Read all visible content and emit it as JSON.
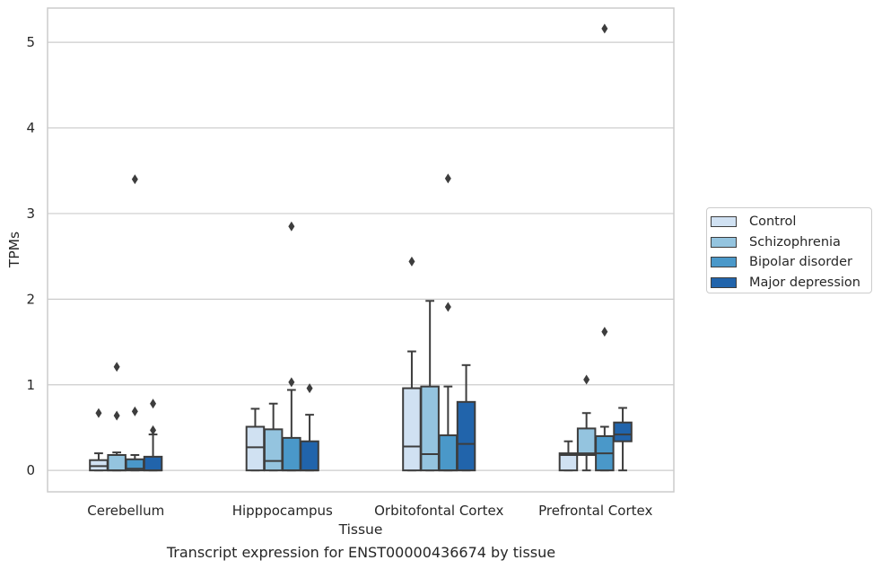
{
  "caption": "Transcript expression for ENST00000436674 by tissue",
  "chart_data": {
    "type": "box",
    "xlabel": "Tissue",
    "ylabel": "TPMs",
    "ylim": [
      -0.25,
      5.4
    ],
    "yticks": [
      0,
      1,
      2,
      3,
      4,
      5
    ],
    "grid": true,
    "legend_position": "right",
    "categories": [
      "Cerebellum",
      "Hipppocampus",
      "Orbitofontal Cortex",
      "Prefrontal Cortex"
    ],
    "series": [
      {
        "name": "Control",
        "color": "#d0e1f2",
        "boxes": [
          {
            "whislo": 0.0,
            "q1": 0.0,
            "med": 0.05,
            "q3": 0.12,
            "whishi": 0.2,
            "fliers": [
              0.67
            ]
          },
          {
            "whislo": 0.0,
            "q1": 0.0,
            "med": 0.27,
            "q3": 0.51,
            "whishi": 0.72,
            "fliers": []
          },
          {
            "whislo": 0.0,
            "q1": 0.0,
            "med": 0.28,
            "q3": 0.96,
            "whishi": 1.39,
            "fliers": [
              2.44
            ]
          },
          {
            "whislo": 0.0,
            "q1": 0.0,
            "med": 0.18,
            "q3": 0.2,
            "whishi": 0.34,
            "fliers": []
          }
        ]
      },
      {
        "name": "Schizophrenia",
        "color": "#94c4df",
        "boxes": [
          {
            "whislo": 0.0,
            "q1": 0.0,
            "med": 0.0,
            "q3": 0.18,
            "whishi": 0.21,
            "fliers": [
              0.64,
              1.21
            ]
          },
          {
            "whislo": 0.0,
            "q1": 0.0,
            "med": 0.11,
            "q3": 0.48,
            "whishi": 0.78,
            "fliers": []
          },
          {
            "whislo": 0.0,
            "q1": 0.0,
            "med": 0.19,
            "q3": 0.98,
            "whishi": 1.98,
            "fliers": []
          },
          {
            "whislo": 0.0,
            "q1": 0.18,
            "med": 0.2,
            "q3": 0.49,
            "whishi": 0.67,
            "fliers": [
              1.06
            ]
          }
        ]
      },
      {
        "name": "Bipolar disorder",
        "color": "#4a98c9",
        "boxes": [
          {
            "whislo": 0.0,
            "q1": 0.0,
            "med": 0.02,
            "q3": 0.13,
            "whishi": 0.18,
            "fliers": [
              0.69,
              3.4
            ]
          },
          {
            "whislo": 0.0,
            "q1": 0.0,
            "med": 0.0,
            "q3": 0.38,
            "whishi": 0.94,
            "fliers": [
              1.03,
              2.85
            ]
          },
          {
            "whislo": 0.0,
            "q1": 0.0,
            "med": 0.0,
            "q3": 0.41,
            "whishi": 0.98,
            "fliers": [
              1.91,
              3.41
            ]
          },
          {
            "whislo": 0.0,
            "q1": 0.0,
            "med": 0.2,
            "q3": 0.4,
            "whishi": 0.51,
            "fliers": [
              1.62,
              5.16
            ]
          }
        ]
      },
      {
        "name": "Major depression",
        "color": "#2164ab",
        "boxes": [
          {
            "whislo": 0.0,
            "q1": 0.0,
            "med": 0.0,
            "q3": 0.16,
            "whishi": 0.42,
            "fliers": [
              0.47,
              0.78
            ]
          },
          {
            "whislo": 0.0,
            "q1": 0.0,
            "med": 0.0,
            "q3": 0.34,
            "whishi": 0.65,
            "fliers": [
              0.96
            ]
          },
          {
            "whislo": 0.0,
            "q1": 0.0,
            "med": 0.31,
            "q3": 0.8,
            "whishi": 1.23,
            "fliers": []
          },
          {
            "whislo": 0.0,
            "q1": 0.34,
            "med": 0.42,
            "q3": 0.56,
            "whishi": 0.73,
            "fliers": []
          }
        ]
      }
    ]
  }
}
